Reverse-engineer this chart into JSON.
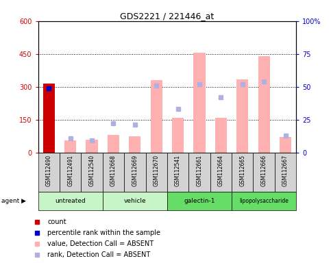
{
  "title": "GDS2221 / 221446_at",
  "samples": [
    "GSM112490",
    "GSM112491",
    "GSM112540",
    "GSM112668",
    "GSM112669",
    "GSM112670",
    "GSM112541",
    "GSM112661",
    "GSM112664",
    "GSM112665",
    "GSM112666",
    "GSM112667"
  ],
  "group_spans": [
    {
      "label": "untreated",
      "start": 0,
      "end": 3,
      "color": "#c8f5c8"
    },
    {
      "label": "vehicle",
      "start": 3,
      "end": 6,
      "color": "#c8f5c8"
    },
    {
      "label": "galectin-1",
      "start": 6,
      "end": 9,
      "color": "#66dd66"
    },
    {
      "label": "lipopolysaccharide",
      "start": 9,
      "end": 12,
      "color": "#66dd66"
    }
  ],
  "count_values": [
    315,
    null,
    null,
    null,
    null,
    null,
    null,
    null,
    null,
    null,
    null,
    null
  ],
  "percentile_rank_values": [
    49,
    null,
    null,
    null,
    null,
    null,
    null,
    null,
    null,
    null,
    null,
    null
  ],
  "pink_bar_values": [
    null,
    55,
    60,
    80,
    75,
    330,
    160,
    455,
    160,
    335,
    440,
    70
  ],
  "blue_square_values": [
    null,
    11,
    9,
    22,
    21,
    51,
    33,
    52,
    42,
    52,
    54,
    13
  ],
  "ylim_left": [
    0,
    600
  ],
  "ylim_right": [
    0,
    100
  ],
  "left_ticks": [
    0,
    150,
    300,
    450,
    600
  ],
  "right_ticks": [
    0,
    25,
    50,
    75,
    100
  ],
  "left_tick_labels": [
    "0",
    "150",
    "300",
    "450",
    "600"
  ],
  "right_tick_labels": [
    "0",
    "25",
    "50",
    "75",
    "100%"
  ],
  "left_color": "#cc0000",
  "right_color": "#0000cc",
  "pink_color": "#ffb0b0",
  "blue_sq_color": "#b0b0e0",
  "count_color": "#cc0000",
  "pct_rank_color": "#0000cc",
  "bg_sample_row": "#d3d3d3",
  "legend_labels": [
    "count",
    "percentile rank within the sample",
    "value, Detection Call = ABSENT",
    "rank, Detection Call = ABSENT"
  ],
  "legend_colors": [
    "#cc0000",
    "#0000cc",
    "#ffb0b0",
    "#b0b0e0"
  ]
}
